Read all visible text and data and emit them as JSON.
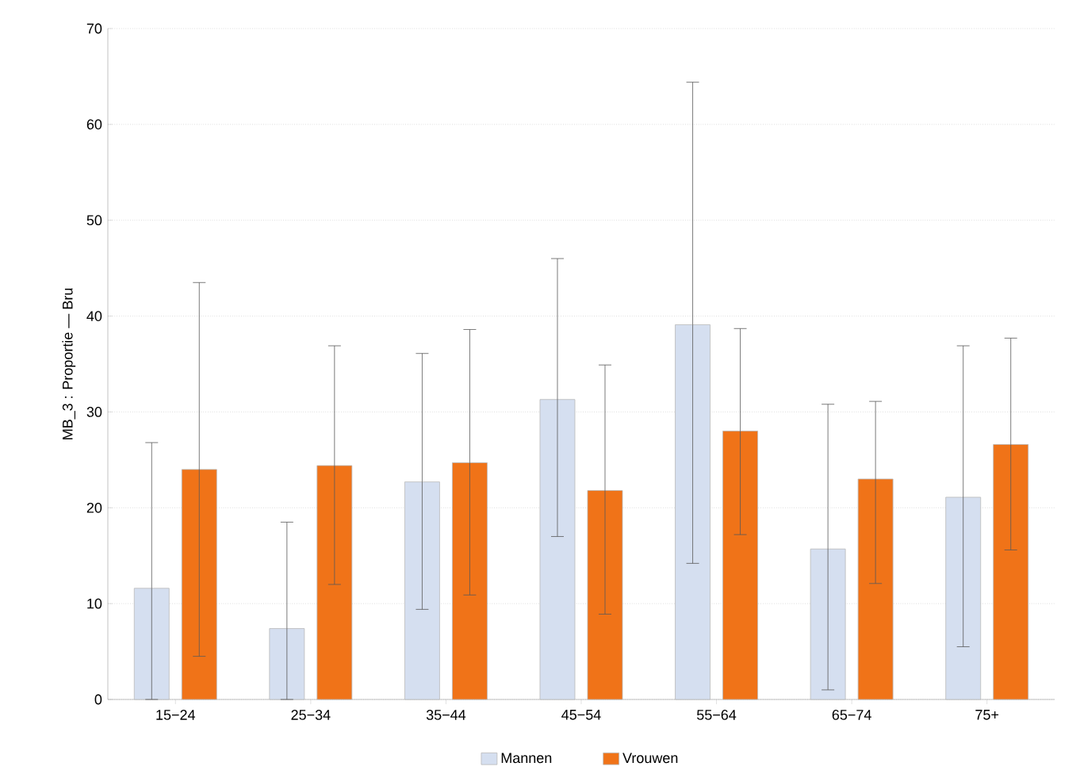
{
  "chart_data": {
    "type": "bar",
    "ylabel": "MB_3 : Proportie — Bru",
    "categories": [
      "15−24",
      "25−34",
      "35−44",
      "45−54",
      "55−64",
      "65−74",
      "75+"
    ],
    "series": [
      {
        "name": "Mannen",
        "color": "#d5dff0",
        "values": [
          11.6,
          7.4,
          22.7,
          31.3,
          39.1,
          15.7,
          21.1
        ],
        "errors": [
          [
            0,
            26.8
          ],
          [
            0,
            18.5
          ],
          [
            9.4,
            36.1
          ],
          [
            17.0,
            46.0
          ],
          [
            14.2,
            64.4
          ],
          [
            1.0,
            30.8
          ],
          [
            5.5,
            36.9
          ]
        ]
      },
      {
        "name": "Vrouwen",
        "color": "#f07318",
        "values": [
          24.0,
          24.4,
          24.7,
          21.8,
          28.0,
          23.0,
          26.6
        ],
        "errors": [
          [
            4.5,
            43.5
          ],
          [
            12.0,
            36.9
          ],
          [
            10.9,
            38.6
          ],
          [
            8.9,
            34.9
          ],
          [
            17.2,
            38.7
          ],
          [
            12.1,
            31.1
          ],
          [
            15.6,
            37.7
          ]
        ]
      }
    ],
    "ylim": [
      0,
      70
    ],
    "yticks": [
      0,
      10,
      20,
      30,
      40,
      50,
      60,
      70
    ],
    "grid": "y",
    "legend": "bottom"
  }
}
